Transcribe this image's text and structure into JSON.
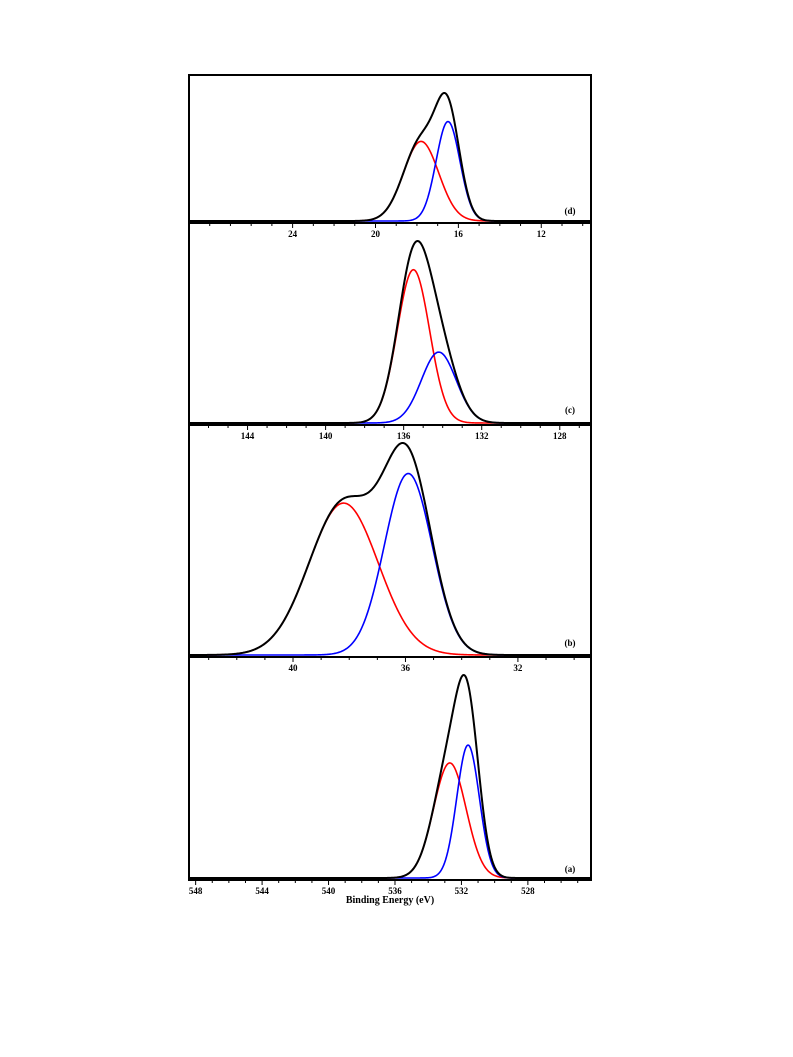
{
  "xlabel": "Binding Energy (eV)",
  "colors": {
    "envelope": "#000000",
    "component1": "#ff0000",
    "component2": "#0000ff",
    "frame": "#000000"
  },
  "chart_data": [
    {
      "panel": "(d)",
      "type": "line",
      "xlim": [
        29.0,
        9.6
      ],
      "reversed_x": true,
      "ticks": [
        "24",
        "20",
        "16",
        "12"
      ],
      "tick_values": [
        24,
        20,
        16,
        12
      ],
      "grid": false,
      "components": [
        {
          "color": "red",
          "center": 17.8,
          "fwhm": 2.0,
          "height": 0.76
        },
        {
          "color": "blue",
          "center": 16.5,
          "fwhm": 1.35,
          "height": 0.95
        }
      ],
      "envelope_peak": {
        "x": 16.8,
        "y": 1.0
      }
    },
    {
      "panel": "(c)",
      "type": "line",
      "xlim": [
        147.0,
        126.4
      ],
      "reversed_x": true,
      "ticks": [
        "144",
        "140",
        "136",
        "132",
        "128"
      ],
      "tick_values": [
        144,
        140,
        136,
        132,
        128
      ],
      "grid": false,
      "components": [
        {
          "color": "red",
          "center": 135.5,
          "fwhm": 1.95,
          "height": 0.8
        },
        {
          "color": "blue",
          "center": 134.2,
          "fwhm": 2.1,
          "height": 0.37
        }
      ],
      "envelope_peak": {
        "x": 135.3,
        "y": 1.0
      }
    },
    {
      "panel": "(b)",
      "type": "line",
      "xlim": [
        43.7,
        29.4
      ],
      "reversed_x": true,
      "ticks": [
        "40",
        "36",
        "32"
      ],
      "tick_values": [
        40,
        36,
        32
      ],
      "grid": false,
      "components": [
        {
          "color": "red",
          "center": 38.2,
          "fwhm": 2.9,
          "height": 0.77
        },
        {
          "color": "blue",
          "center": 35.9,
          "fwhm": 2.0,
          "height": 0.92
        }
      ],
      "envelope_peak": {
        "x": 35.9,
        "y": 1.0
      }
    },
    {
      "panel": "(a)",
      "type": "line",
      "xlim": [
        548.4,
        524.2
      ],
      "reversed_x": true,
      "ticks": [
        "548",
        "544",
        "540",
        "536",
        "532",
        "528"
      ],
      "tick_values": [
        548,
        544,
        540,
        536,
        532,
        528
      ],
      "grid": false,
      "components": [
        {
          "color": "red",
          "center": 532.7,
          "fwhm": 2.3,
          "height": 0.58
        },
        {
          "color": "blue",
          "center": 531.6,
          "fwhm": 1.6,
          "height": 0.67
        }
      ],
      "envelope_peak": {
        "x": 532.0,
        "y": 1.0
      }
    }
  ]
}
